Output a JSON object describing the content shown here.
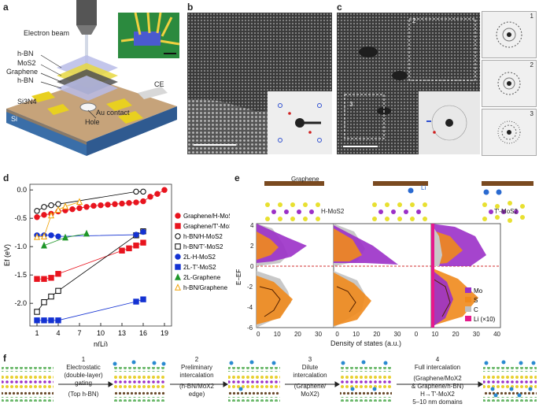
{
  "panels": {
    "a": "a",
    "b": "b",
    "c": "c",
    "d": "d",
    "e": "e",
    "f": "f"
  },
  "panel_a": {
    "electron_beam": "Electron beam",
    "layers": [
      "h-BN",
      "MoS2",
      "Graphene",
      "h-BN"
    ],
    "si3n4": "Si3N4",
    "si": "Si",
    "ce": "CE",
    "contact": "Au contact",
    "hole": "Hole"
  },
  "panel_c": {
    "fft_labels": [
      "1",
      "2",
      "3"
    ],
    "region_labels": [
      "2",
      "3"
    ]
  },
  "panel_e": {
    "graphene": "Graphene",
    "li": "Li",
    "h_mos2": "H-MoS2",
    "t_mos2": "T′-MoS2",
    "ylabel": "E−EF",
    "xlabel": "Density of states (a.u.)",
    "legend": [
      {
        "name": "Mo",
        "color": "#9b30c8"
      },
      {
        "name": "S",
        "color": "#f08a1c"
      },
      {
        "name": "C",
        "color": "#c0c0c0"
      },
      {
        "name": "Li (×10)",
        "color": "#e6198c"
      }
    ],
    "yticks": [
      "4",
      "2",
      "0",
      "-2",
      "-4",
      "-6"
    ],
    "xticks": [
      "0",
      "10",
      "20",
      "30",
      "0",
      "10",
      "20",
      "30",
      "0",
      "10",
      "20",
      "30",
      "40"
    ]
  },
  "panel_f": {
    "steps": [
      {
        "num": "1",
        "text": [
          "Electrostatic",
          "(double-layer)",
          "gating",
          "(Top h-BN)"
        ]
      },
      {
        "num": "2",
        "text": [
          "Preliminary",
          "intercalation",
          "(h-BN/MoX2",
          "edge)"
        ]
      },
      {
        "num": "3",
        "text": [
          "Dilute",
          "intercalation",
          "(Graphene/",
          "MoX2)"
        ]
      },
      {
        "num": "4",
        "text": [
          "Full intercalation",
          "(Graphene/MoX2",
          "& Graphene/h-BN)",
          "H→T′-MoX2",
          "5–10 nm domains"
        ]
      }
    ]
  },
  "chart_data": {
    "type": "scatter",
    "xlabel": "n(Li)",
    "ylabel": "Ef (eV)",
    "xlim": [
      0,
      20
    ],
    "ylim": [
      -2.4,
      0.1
    ],
    "xticks": [
      1,
      4,
      7,
      10,
      13,
      16,
      19
    ],
    "yticks": [
      -2.0,
      -1.5,
      -1.0,
      -0.5,
      0
    ],
    "legend_position": "right",
    "series": [
      {
        "name": "Graphene/H-MoS2",
        "color": "#e8141e",
        "marker": "circle-filled",
        "x": [
          1,
          2,
          3,
          4,
          5,
          6,
          7,
          8,
          9,
          10,
          11,
          12,
          13,
          14,
          15,
          16,
          17,
          18,
          19
        ],
        "y": [
          -0.48,
          -0.44,
          -0.42,
          -0.38,
          -0.36,
          -0.34,
          -0.32,
          -0.3,
          -0.28,
          -0.27,
          -0.26,
          -0.25,
          -0.24,
          -0.23,
          -0.22,
          -0.2,
          -0.12,
          -0.07,
          0.0
        ]
      },
      {
        "name": "Graphene/T′-MoS2",
        "color": "#e8141e",
        "marker": "square-filled",
        "x": [
          1,
          2,
          3,
          4,
          13,
          14,
          15,
          16
        ],
        "y": [
          -1.57,
          -1.57,
          -1.55,
          -1.48,
          -1.07,
          -1.03,
          -0.98,
          -0.93
        ]
      },
      {
        "name": "h-BN/H-MoS2",
        "color": "#000000",
        "marker": "circle-open",
        "x": [
          1,
          2,
          3,
          4,
          15,
          16
        ],
        "y": [
          -0.37,
          -0.3,
          -0.27,
          -0.25,
          -0.03,
          -0.03
        ]
      },
      {
        "name": "h-BN/T′-MoS2",
        "color": "#000000",
        "marker": "square-open",
        "x": [
          1,
          2,
          3,
          4,
          15,
          16
        ],
        "y": [
          -2.15,
          -1.98,
          -1.88,
          -1.78,
          -0.8,
          -0.73
        ]
      },
      {
        "name": "2L-H-MoS2",
        "color": "#1432d2",
        "marker": "circle-filled",
        "x": [
          1,
          2,
          3,
          4,
          15,
          16
        ],
        "y": [
          -0.8,
          -0.8,
          -0.8,
          -0.82,
          -0.79,
          -0.74
        ]
      },
      {
        "name": "2L-T′-MoS2",
        "color": "#1432d2",
        "marker": "square-filled",
        "x": [
          1,
          2,
          3,
          4,
          15,
          16
        ],
        "y": [
          -2.3,
          -2.3,
          -2.3,
          -2.3,
          -1.97,
          -1.93
        ]
      },
      {
        "name": "2L-Graphene",
        "color": "#1e9628",
        "marker": "triangle-filled",
        "x": [
          2,
          5,
          8
        ],
        "y": [
          -0.98,
          -0.84,
          -0.77
        ]
      },
      {
        "name": "h-BN/Graphene",
        "color": "#f0a000",
        "marker": "triangle-open",
        "x": [
          1,
          2,
          3,
          4,
          5,
          7
        ],
        "y": [
          -0.83,
          -0.82,
          -0.45,
          -0.35,
          -0.29,
          -0.21
        ]
      }
    ]
  }
}
